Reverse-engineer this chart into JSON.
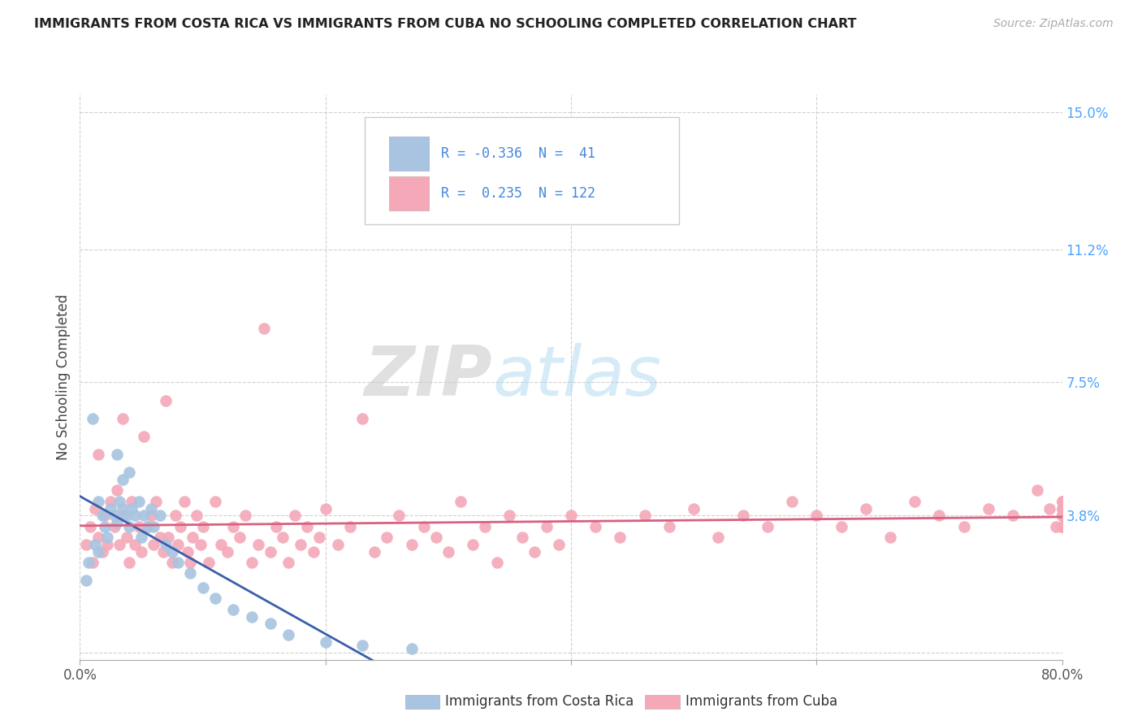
{
  "title": "IMMIGRANTS FROM COSTA RICA VS IMMIGRANTS FROM CUBA NO SCHOOLING COMPLETED CORRELATION CHART",
  "source": "Source: ZipAtlas.com",
  "ylabel": "No Schooling Completed",
  "xlim": [
    0.0,
    0.8
  ],
  "ylim": [
    -0.002,
    0.155
  ],
  "xticks": [
    0.0,
    0.2,
    0.4,
    0.6,
    0.8
  ],
  "xtick_labels": [
    "0.0%",
    "",
    "",
    "",
    "80.0%"
  ],
  "ytick_labels_right": [
    "15.0%",
    "11.2%",
    "7.5%",
    "3.8%",
    ""
  ],
  "yticks_right": [
    0.15,
    0.112,
    0.075,
    0.038,
    0.0
  ],
  "costa_rica_color": "#a8c4e0",
  "cuba_color": "#f4a8b8",
  "costa_rica_line_color": "#3a5fa8",
  "cuba_line_color": "#d96080",
  "R_costa_rica": -0.336,
  "N_costa_rica": 41,
  "R_cuba": 0.235,
  "N_cuba": 122,
  "legend_label_cr": "Immigrants from Costa Rica",
  "legend_label_cuba": "Immigrants from Cuba",
  "watermark_zip": "ZIP",
  "watermark_atlas": "atlas",
  "background_color": "#ffffff",
  "grid_color": "#d0d0d0",
  "costa_rica_x": [
    0.005,
    0.007,
    0.01,
    0.012,
    0.015,
    0.015,
    0.018,
    0.02,
    0.022,
    0.025,
    0.028,
    0.03,
    0.03,
    0.032,
    0.035,
    0.035,
    0.038,
    0.04,
    0.04,
    0.042,
    0.045,
    0.048,
    0.05,
    0.052,
    0.055,
    0.058,
    0.06,
    0.065,
    0.07,
    0.075,
    0.08,
    0.09,
    0.1,
    0.11,
    0.125,
    0.14,
    0.155,
    0.17,
    0.2,
    0.23,
    0.27
  ],
  "costa_rica_y": [
    0.02,
    0.025,
    0.065,
    0.03,
    0.028,
    0.042,
    0.038,
    0.035,
    0.032,
    0.04,
    0.038,
    0.036,
    0.055,
    0.042,
    0.04,
    0.048,
    0.038,
    0.035,
    0.05,
    0.04,
    0.038,
    0.042,
    0.032,
    0.038,
    0.035,
    0.04,
    0.035,
    0.038,
    0.03,
    0.028,
    0.025,
    0.022,
    0.018,
    0.015,
    0.012,
    0.01,
    0.008,
    0.005,
    0.003,
    0.002,
    0.001
  ],
  "cuba_x": [
    0.005,
    0.008,
    0.01,
    0.012,
    0.015,
    0.015,
    0.018,
    0.02,
    0.022,
    0.025,
    0.028,
    0.03,
    0.032,
    0.035,
    0.035,
    0.038,
    0.04,
    0.042,
    0.045,
    0.048,
    0.05,
    0.052,
    0.055,
    0.058,
    0.06,
    0.062,
    0.065,
    0.068,
    0.07,
    0.072,
    0.075,
    0.078,
    0.08,
    0.082,
    0.085,
    0.088,
    0.09,
    0.092,
    0.095,
    0.098,
    0.1,
    0.105,
    0.11,
    0.115,
    0.12,
    0.125,
    0.13,
    0.135,
    0.14,
    0.145,
    0.15,
    0.155,
    0.16,
    0.165,
    0.17,
    0.175,
    0.18,
    0.185,
    0.19,
    0.195,
    0.2,
    0.21,
    0.22,
    0.23,
    0.24,
    0.25,
    0.26,
    0.27,
    0.28,
    0.29,
    0.3,
    0.31,
    0.32,
    0.33,
    0.34,
    0.35,
    0.36,
    0.37,
    0.38,
    0.39,
    0.4,
    0.42,
    0.44,
    0.46,
    0.48,
    0.5,
    0.52,
    0.54,
    0.56,
    0.58,
    0.6,
    0.62,
    0.64,
    0.66,
    0.68,
    0.7,
    0.72,
    0.74,
    0.76,
    0.78,
    0.79,
    0.795,
    0.8,
    0.8,
    0.8,
    0.8,
    0.8,
    0.8,
    0.8,
    0.8,
    0.8,
    0.8,
    0.8,
    0.8,
    0.8,
    0.8,
    0.8,
    0.8,
    0.8,
    0.8,
    0.8,
    0.8
  ],
  "cuba_y": [
    0.03,
    0.035,
    0.025,
    0.04,
    0.032,
    0.055,
    0.028,
    0.038,
    0.03,
    0.042,
    0.035,
    0.045,
    0.03,
    0.038,
    0.065,
    0.032,
    0.025,
    0.042,
    0.03,
    0.035,
    0.028,
    0.06,
    0.035,
    0.038,
    0.03,
    0.042,
    0.032,
    0.028,
    0.07,
    0.032,
    0.025,
    0.038,
    0.03,
    0.035,
    0.042,
    0.028,
    0.025,
    0.032,
    0.038,
    0.03,
    0.035,
    0.025,
    0.042,
    0.03,
    0.028,
    0.035,
    0.032,
    0.038,
    0.025,
    0.03,
    0.09,
    0.028,
    0.035,
    0.032,
    0.025,
    0.038,
    0.03,
    0.035,
    0.028,
    0.032,
    0.04,
    0.03,
    0.035,
    0.065,
    0.028,
    0.032,
    0.038,
    0.03,
    0.035,
    0.032,
    0.028,
    0.042,
    0.03,
    0.035,
    0.025,
    0.038,
    0.032,
    0.028,
    0.035,
    0.03,
    0.038,
    0.035,
    0.032,
    0.038,
    0.035,
    0.04,
    0.032,
    0.038,
    0.035,
    0.042,
    0.038,
    0.035,
    0.04,
    0.032,
    0.042,
    0.038,
    0.035,
    0.04,
    0.038,
    0.045,
    0.04,
    0.035,
    0.038,
    0.035,
    0.04,
    0.038,
    0.042,
    0.035,
    0.038,
    0.04,
    0.035,
    0.038,
    0.04,
    0.035,
    0.042,
    0.038,
    0.04,
    0.035,
    0.038,
    0.042,
    0.04,
    0.035
  ]
}
